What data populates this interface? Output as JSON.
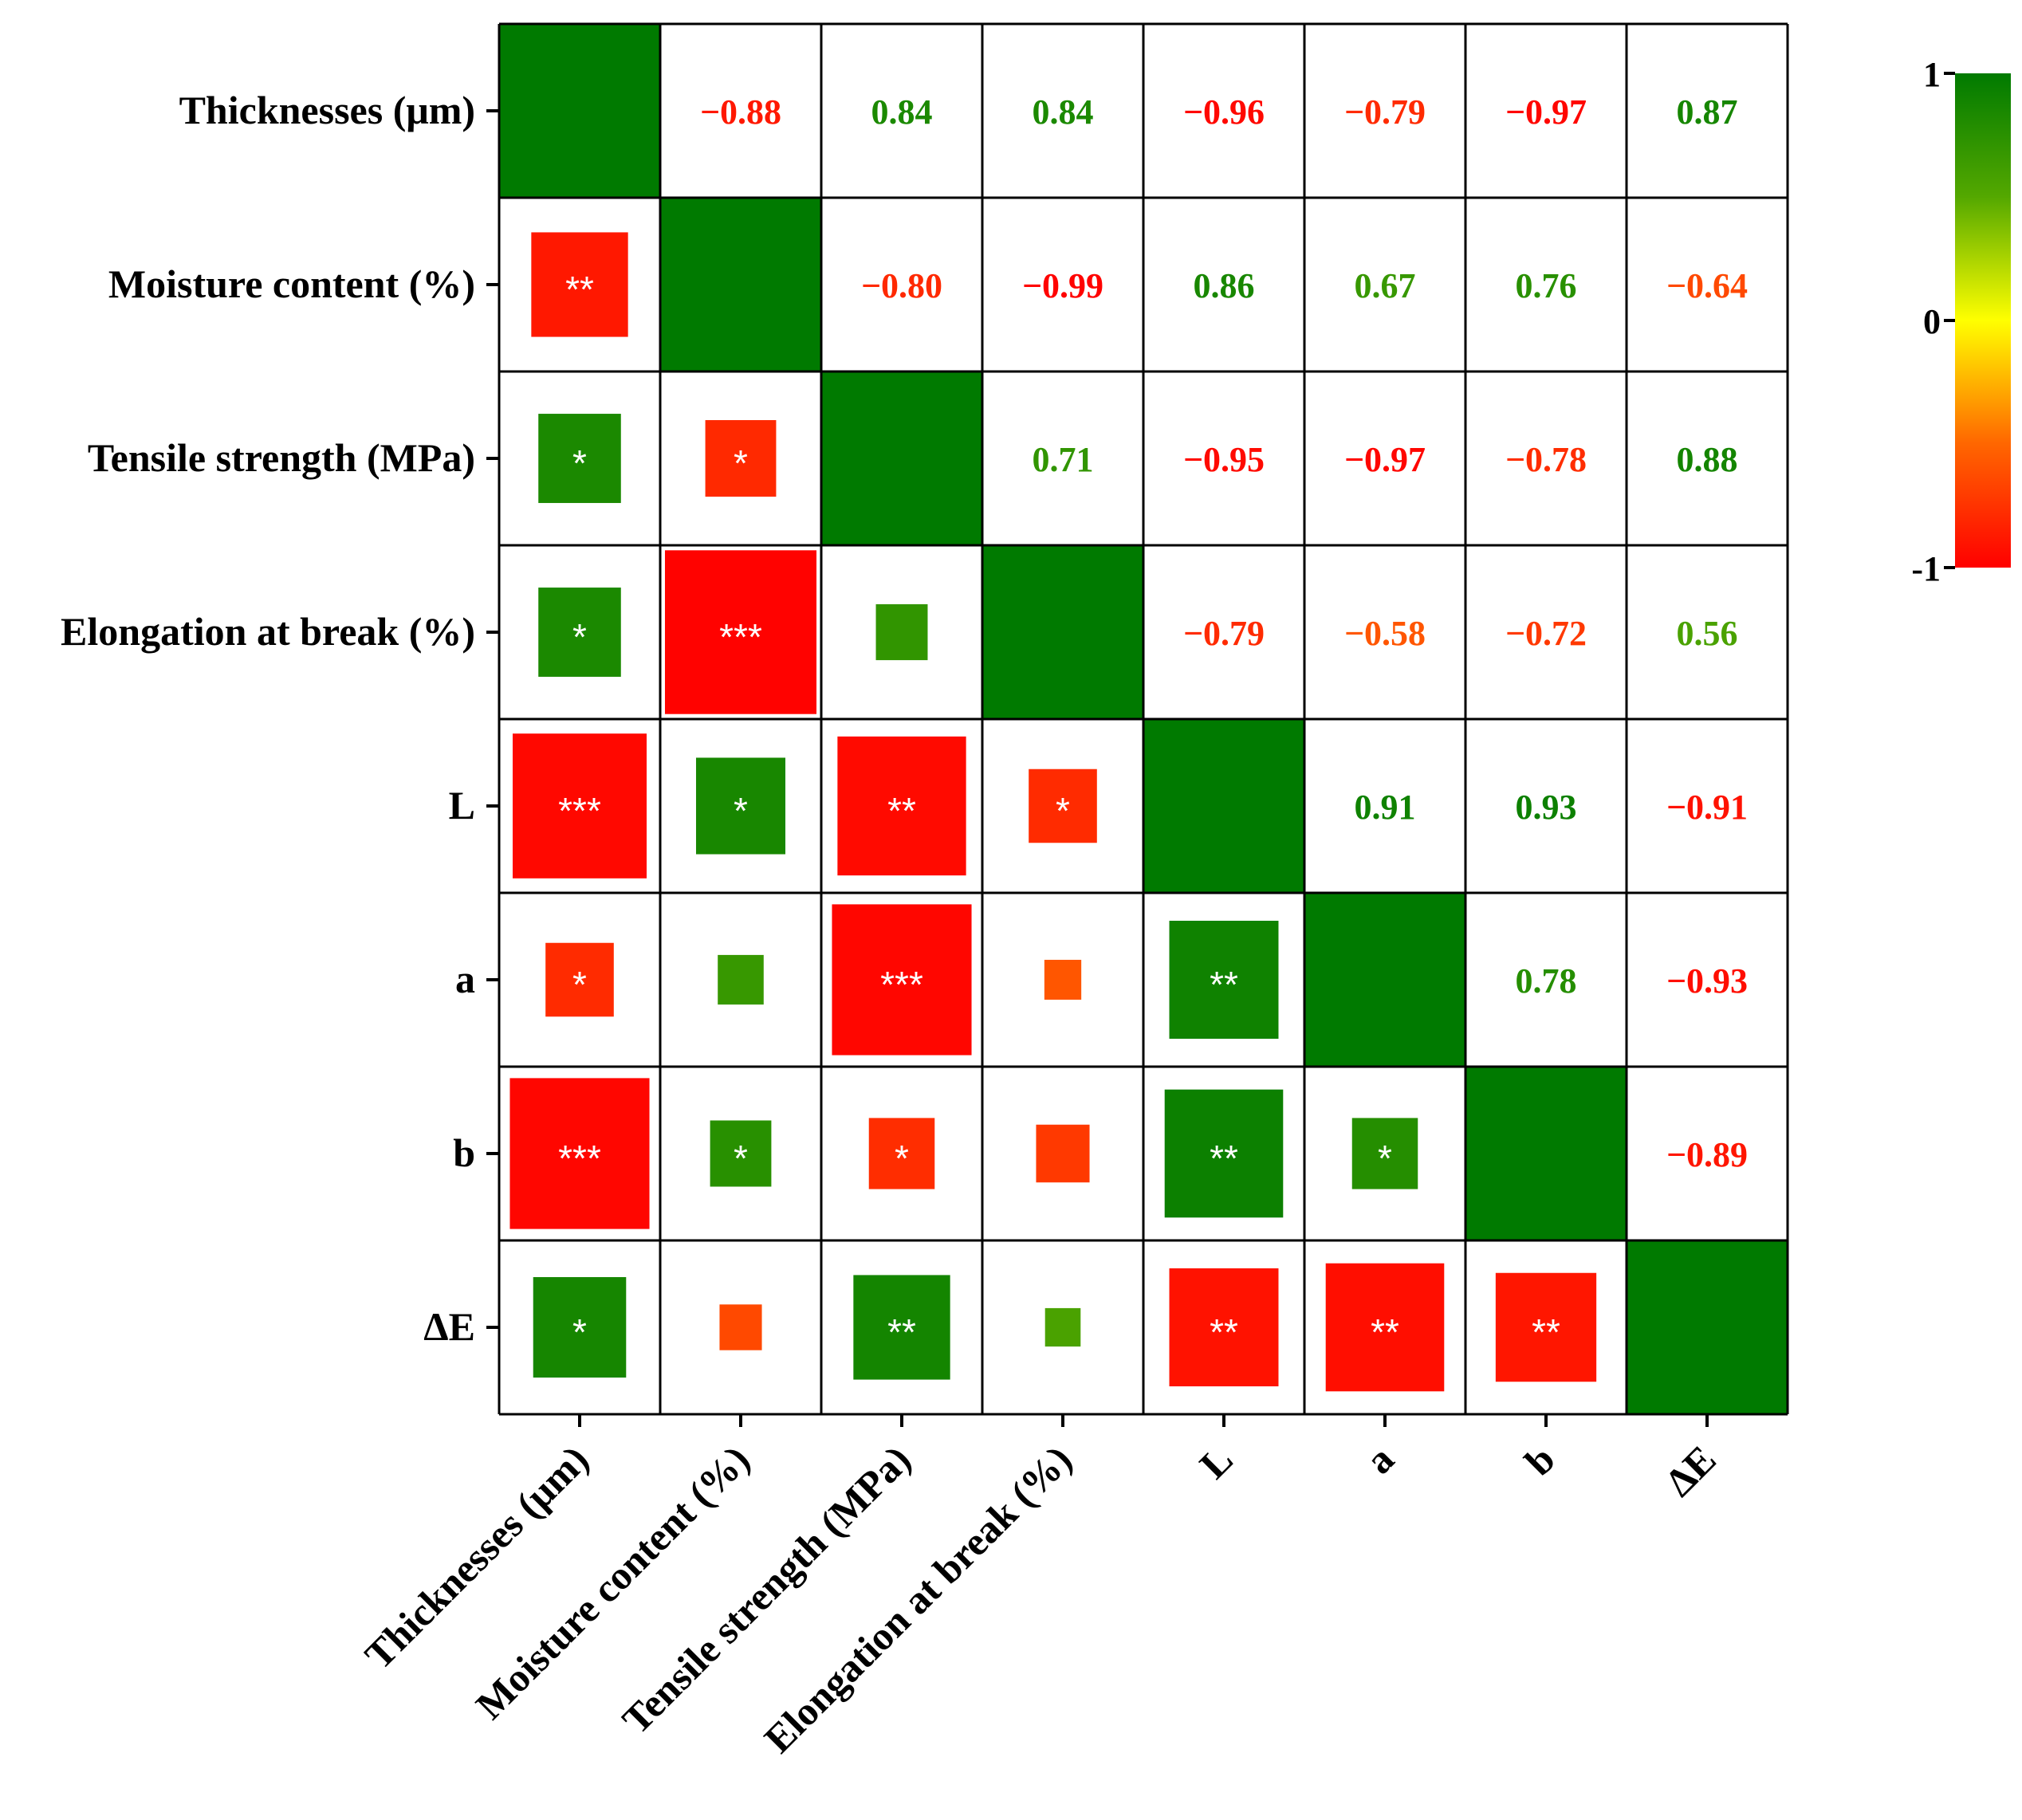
{
  "chart_data": {
    "type": "heatmap",
    "variables": [
      "Thicknesses (μm)",
      "Moisture content (%)",
      "Tensile strength (MPa)",
      "Elongation at break (%)",
      "L",
      "a",
      "b",
      "ΔE"
    ],
    "matrix": [
      [
        1,
        -0.88,
        0.84,
        0.84,
        -0.96,
        -0.79,
        -0.97,
        0.87
      ],
      [
        -0.88,
        1,
        -0.8,
        -0.99,
        0.86,
        0.67,
        0.76,
        -0.64
      ],
      [
        0.84,
        -0.8,
        1,
        0.71,
        -0.95,
        -0.97,
        -0.78,
        0.88
      ],
      [
        0.84,
        -0.99,
        0.71,
        1,
        -0.79,
        -0.58,
        -0.72,
        0.56
      ],
      [
        -0.96,
        0.86,
        -0.95,
        -0.79,
        1,
        0.91,
        0.93,
        -0.91
      ],
      [
        -0.79,
        0.67,
        -0.97,
        -0.58,
        0.91,
        1,
        0.78,
        -0.93
      ],
      [
        -0.97,
        0.76,
        -0.78,
        -0.72,
        0.93,
        0.78,
        1,
        -0.89
      ],
      [
        0.87,
        -0.64,
        0.88,
        0.56,
        -0.91,
        -0.93,
        -0.89,
        1
      ]
    ],
    "upper_labels": [
      [
        "",
        "−0.88",
        "0.84",
        "0.84",
        "−0.96",
        "−0.79",
        "−0.97",
        "0.87"
      ],
      [
        "",
        "",
        "−0.80",
        "−0.99",
        "0.86",
        "0.67",
        "0.76",
        "−0.64"
      ],
      [
        "",
        "",
        "",
        "0.71",
        "−0.95",
        "−0.97",
        "−0.78",
        "0.88"
      ],
      [
        "",
        "",
        "",
        "",
        "−0.79",
        "−0.58",
        "−0.72",
        "0.56"
      ],
      [
        "",
        "",
        "",
        "",
        "",
        "0.91",
        "0.93",
        "−0.91"
      ],
      [
        "",
        "",
        "",
        "",
        "",
        "",
        "0.78",
        "−0.93"
      ],
      [
        "",
        "",
        "",
        "",
        "",
        "",
        "",
        "−0.89"
      ],
      [
        "",
        "",
        "",
        "",
        "",
        "",
        "",
        ""
      ]
    ],
    "significance": [
      [
        "",
        "",
        "",
        "",
        "",
        "",
        "",
        ""
      ],
      [
        "**",
        "",
        "",
        "",
        "",
        "",
        "",
        ""
      ],
      [
        "*",
        "*",
        "",
        "",
        "",
        "",
        "",
        ""
      ],
      [
        "*",
        "***",
        "",
        "",
        "",
        "",
        "",
        ""
      ],
      [
        "***",
        "*",
        "**",
        "*",
        "",
        "",
        "",
        ""
      ],
      [
        "*",
        "",
        "***",
        "",
        "**",
        "",
        "",
        ""
      ],
      [
        "***",
        "*",
        "*",
        "",
        "**",
        "*",
        "",
        ""
      ],
      [
        "*",
        "",
        "**",
        "",
        "**",
        "**",
        "**",
        ""
      ]
    ],
    "lower_triangle": "squares sized by |r|",
    "upper_triangle": "numeric values",
    "diagonal": "filled",
    "colorbar": {
      "min": -1,
      "max": 1,
      "tick_labels": [
        "1",
        "0",
        "-1"
      ],
      "colors": [
        "#ff0000",
        "#ff6600",
        "#ffff00",
        "#54a800",
        "#007a00"
      ]
    }
  }
}
